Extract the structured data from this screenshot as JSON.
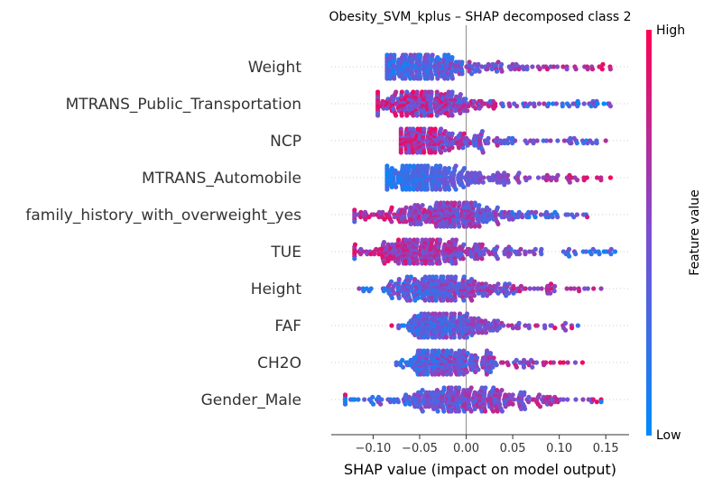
{
  "chart_data": {
    "type": "scatter",
    "subtype": "shap-beeswarm",
    "title": "Obesity_SVM_kplus – SHAP decomposed class 2",
    "xlabel": "SHAP value (impact on model output)",
    "xlim": [
      -0.145,
      0.175
    ],
    "xticks": [
      -0.1,
      -0.05,
      0.0,
      0.05,
      0.1,
      0.15
    ],
    "xtick_labels": [
      "−0.10",
      "−0.05",
      "0.00",
      "0.05",
      "0.10",
      "0.15"
    ],
    "colorbar": {
      "label": "Feature value",
      "high_label": "High",
      "low_label": "Low",
      "low_color": "#008bfb",
      "high_color": "#ff0052"
    },
    "features": [
      {
        "name": "Weight",
        "min": -0.085,
        "max": 0.155,
        "mode": -0.06,
        "spread": 0.02,
        "center": -0.01,
        "low_side": "neg",
        "mix": 0.5
      },
      {
        "name": "MTRANS_Public_Transportation",
        "min": -0.095,
        "max": 0.155,
        "mode": -0.05,
        "spread": 0.025,
        "center": -0.02,
        "low_side": "pos",
        "mix": 0.7
      },
      {
        "name": "NCP",
        "min": -0.07,
        "max": 0.15,
        "mode": -0.055,
        "spread": 0.02,
        "center": -0.01,
        "low_side": "pos",
        "mix": 0.6
      },
      {
        "name": "MTRANS_Automobile",
        "min": -0.085,
        "max": 0.155,
        "mode": -0.05,
        "spread": 0.025,
        "center": -0.01,
        "low_side": "neg",
        "mix": 0.3
      },
      {
        "name": "family_history_with_overweight_yes",
        "min": -0.12,
        "max": 0.13,
        "mode": -0.02,
        "spread": 0.035,
        "center": -0.01,
        "low_side": "pos",
        "mix": 0.5
      },
      {
        "name": "TUE",
        "min": -0.12,
        "max": 0.16,
        "mode": -0.05,
        "spread": 0.03,
        "center": -0.01,
        "low_side": "pos",
        "mix": 0.5
      },
      {
        "name": "Height",
        "min": -0.115,
        "max": 0.145,
        "mode": -0.035,
        "spread": 0.025,
        "center": 0.0,
        "low_side": "neg",
        "mix": 0.55
      },
      {
        "name": "FAF",
        "min": -0.08,
        "max": 0.12,
        "mode": -0.035,
        "spread": 0.015,
        "center": 0.0,
        "low_side": "neg",
        "mix": 0.5
      },
      {
        "name": "CH2O",
        "min": -0.075,
        "max": 0.125,
        "mode": -0.035,
        "spread": 0.015,
        "center": 0.0,
        "low_side": "neg",
        "mix": 0.55
      },
      {
        "name": "Gender_Male",
        "min": -0.13,
        "max": 0.145,
        "mode": -0.01,
        "spread": 0.035,
        "center": 0.0,
        "low_side": "neg",
        "mix": 0.5
      }
    ]
  }
}
